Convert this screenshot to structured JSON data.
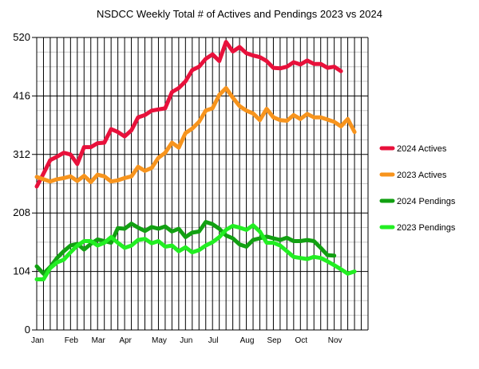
{
  "chart_data": {
    "type": "line",
    "title": "NSDCC Weekly Total # of Actives and Pendings 2023 vs 2024",
    "xlabel": "",
    "ylabel": "",
    "ylim": [
      0,
      520
    ],
    "yticks": [
      0,
      104,
      208,
      312,
      416,
      520
    ],
    "xticks": [
      {
        "label": "Jan",
        "week": 0
      },
      {
        "label": "Feb",
        "week": 5
      },
      {
        "label": "Mar",
        "week": 9
      },
      {
        "label": "Apr",
        "week": 13
      },
      {
        "label": "May",
        "week": 18
      },
      {
        "label": "Jun",
        "week": 22
      },
      {
        "label": "Jul",
        "week": 26
      },
      {
        "label": "Aug",
        "week": 31
      },
      {
        "label": "Sep",
        "week": 35
      },
      {
        "label": "Oct",
        "week": 39
      },
      {
        "label": "Nov",
        "week": 44
      }
    ],
    "grid": true,
    "legend_position": "right",
    "series": [
      {
        "name": "2024 Actives",
        "color": "#e8113b",
        "values": [
          255,
          278,
          302,
          308,
          315,
          312,
          295,
          325,
          325,
          332,
          333,
          357,
          352,
          344,
          355,
          378,
          382,
          390,
          392,
          394,
          423,
          430,
          442,
          462,
          468,
          482,
          490,
          478,
          512,
          495,
          503,
          492,
          488,
          485,
          478,
          466,
          465,
          468,
          476,
          472,
          479,
          473,
          473,
          466,
          468,
          460
        ]
      },
      {
        "name": "2023 Actives",
        "color": "#f7941d",
        "values": [
          272,
          268,
          264,
          268,
          270,
          273,
          265,
          274,
          263,
          276,
          273,
          264,
          266,
          270,
          273,
          290,
          283,
          288,
          306,
          315,
          333,
          324,
          350,
          358,
          370,
          390,
          394,
          418,
          430,
          413,
          398,
          390,
          385,
          373,
          393,
          378,
          373,
          372,
          382,
          375,
          384,
          378,
          378,
          374,
          370,
          362,
          375,
          352
        ]
      },
      {
        "name": "2024 Pendings",
        "color": "#12a012",
        "values": [
          113,
          100,
          112,
          128,
          140,
          150,
          153,
          143,
          153,
          161,
          158,
          155,
          181,
          180,
          189,
          182,
          176,
          183,
          180,
          184,
          175,
          180,
          165,
          173,
          175,
          192,
          188,
          180,
          168,
          163,
          152,
          148,
          160,
          163,
          166,
          163,
          160,
          164,
          158,
          158,
          160,
          158,
          146,
          133,
          132
        ]
      },
      {
        "name": "2023 Pendings",
        "color": "#22ee22",
        "values": [
          90,
          90,
          110,
          120,
          125,
          138,
          150,
          158,
          158,
          150,
          155,
          165,
          155,
          146,
          150,
          160,
          162,
          154,
          158,
          148,
          150,
          140,
          147,
          138,
          142,
          150,
          156,
          165,
          178,
          185,
          182,
          178,
          186,
          175,
          155,
          155,
          150,
          140,
          130,
          128,
          126,
          130,
          128,
          122,
          115,
          108,
          100,
          104
        ]
      }
    ]
  }
}
